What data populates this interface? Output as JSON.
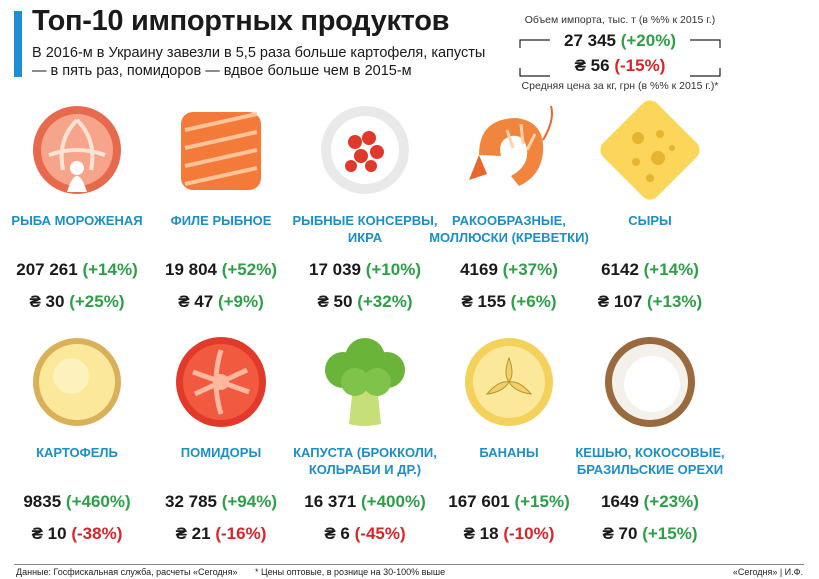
{
  "header": {
    "title": "Топ-10 импортных продуктов",
    "subtitle": "В 2016-м в Украину завезли в 5,5 раза больше картофеля, капусты — в пять раз, помидоров — вдвое больше чем в 2015-м"
  },
  "legend": {
    "volume_caption": "Объем импорта, тыс. т (в %% к 2015 г.)",
    "volume_value": "27 345",
    "volume_change": "(+20%)",
    "price_value": "₴ 56",
    "price_change": "(-15%)",
    "price_caption": "Средняя цена за кг, грн (в %% к 2015 г.)*"
  },
  "products": [
    {
      "name": "Рыба мороженая",
      "icon": "fish-steak-icon",
      "volume": "207 261",
      "volume_change": "(+14%)",
      "price": "₴ 30",
      "price_change": "(+25%)"
    },
    {
      "name": "Филе рыбное",
      "icon": "fish-fillet-icon",
      "volume": "19 804",
      "volume_change": "(+52%)",
      "price": "₴ 47",
      "price_change": "(+9%)"
    },
    {
      "name": "Рыбные консервы, икра",
      "icon": "caviar-icon",
      "volume": "17 039",
      "volume_change": "(+10%)",
      "price": "₴ 50",
      "price_change": "(+32%)"
    },
    {
      "name": "Ракообразные, моллюски (креветки)",
      "icon": "shrimp-icon",
      "volume": "4169",
      "volume_change": "(+37%)",
      "price": "₴ 155",
      "price_change": "(+6%)"
    },
    {
      "name": "Сыры",
      "icon": "cheese-icon",
      "volume": "6142",
      "volume_change": "(+14%)",
      "price": "₴ 107",
      "price_change": "(+13%)"
    },
    {
      "name": "Картофель",
      "icon": "potato-icon",
      "volume": "9835",
      "volume_change": "(+460%)",
      "price": "₴ 10",
      "price_change": "(-38%)"
    },
    {
      "name": "Помидоры",
      "icon": "tomato-icon",
      "volume": "32 785",
      "volume_change": "(+94%)",
      "price": "₴ 21",
      "price_change": "(-16%)"
    },
    {
      "name": "Капуста (брокколи, кольраби и др.)",
      "icon": "broccoli-icon",
      "volume": "16 371",
      "volume_change": "(+400%)",
      "price": "₴ 6",
      "price_change": "(-45%)"
    },
    {
      "name": "Бананы",
      "icon": "banana-icon",
      "volume": "167 601",
      "volume_change": "(+15%)",
      "price": "₴ 18",
      "price_change": "(-10%)"
    },
    {
      "name": "Кешью, кокосовые, бразильские орехи",
      "icon": "coconut-icon",
      "volume": "1649",
      "volume_change": "(+23%)",
      "price": "₴ 70",
      "price_change": "(+15%)"
    }
  ],
  "colors": {
    "accent": "#1d8fd0",
    "label": "#1b8fc6",
    "positive": "#2e9e48",
    "negative": "#d6262a"
  },
  "footer": {
    "source": "Данные: Госфискальная служба, расчеты «Сегодня»",
    "note": "* Цены оптовые, в рознице на 30-100% выше",
    "credit": "«Сегодня» | И.Ф."
  }
}
